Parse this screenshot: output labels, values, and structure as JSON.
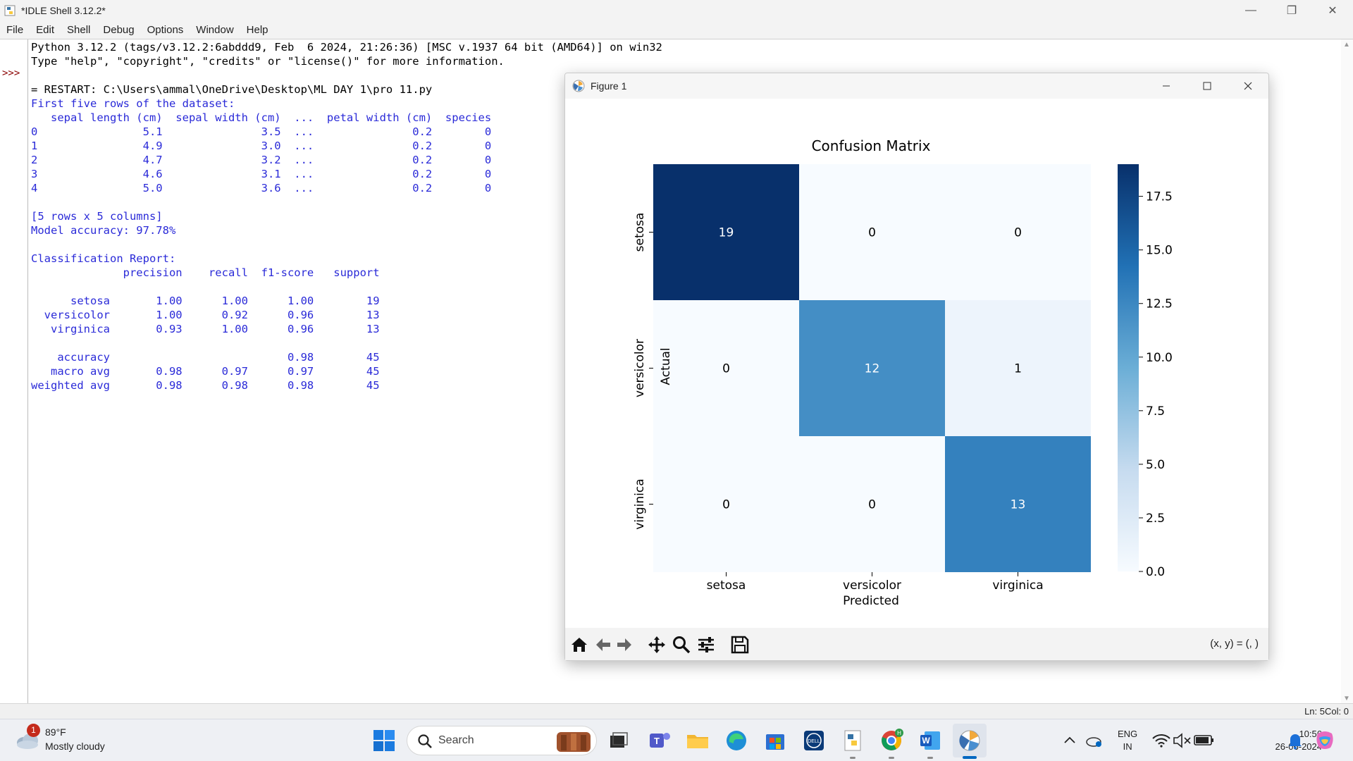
{
  "window": {
    "title": "*IDLE Shell 3.12.2*",
    "menu": [
      "File",
      "Edit",
      "Shell",
      "Debug",
      "Options",
      "Window",
      "Help"
    ]
  },
  "shell": {
    "prompt": ">>>",
    "lines": [
      {
        "text": "Python 3.12.2 (tags/v3.12.2:6abddd9, Feb  6 2024, 21:26:36) [MSC v.1937 64 bit (AMD64)] on win32",
        "color": "black"
      },
      {
        "text": "Type \"help\", \"copyright\", \"credits\" or \"license()\" for more information.",
        "color": "black"
      },
      {
        "text": "",
        "color": "black"
      },
      {
        "text": "= RESTART: C:\\Users\\ammal\\OneDrive\\Desktop\\ML DAY 1\\pro 11.py",
        "color": "black"
      },
      {
        "text": "First five rows of the dataset:",
        "color": "blue"
      },
      {
        "text": "   sepal length (cm)  sepal width (cm)  ...  petal width (cm)  species",
        "color": "blue"
      },
      {
        "text": "0                5.1               3.5  ...               0.2        0",
        "color": "blue"
      },
      {
        "text": "1                4.9               3.0  ...               0.2        0",
        "color": "blue"
      },
      {
        "text": "2                4.7               3.2  ...               0.2        0",
        "color": "blue"
      },
      {
        "text": "3                4.6               3.1  ...               0.2        0",
        "color": "blue"
      },
      {
        "text": "4                5.0               3.6  ...               0.2        0",
        "color": "blue"
      },
      {
        "text": "",
        "color": "blue"
      },
      {
        "text": "[5 rows x 5 columns]",
        "color": "blue"
      },
      {
        "text": "Model accuracy: 97.78%",
        "color": "blue"
      },
      {
        "text": "",
        "color": "blue"
      },
      {
        "text": "Classification Report:",
        "color": "blue"
      },
      {
        "text": "              precision    recall  f1-score   support",
        "color": "blue"
      },
      {
        "text": "",
        "color": "blue"
      },
      {
        "text": "      setosa       1.00      1.00      1.00        19",
        "color": "blue"
      },
      {
        "text": "  versicolor       1.00      0.92      0.96        13",
        "color": "blue"
      },
      {
        "text": "   virginica       0.93      1.00      0.96        13",
        "color": "blue"
      },
      {
        "text": "",
        "color": "blue"
      },
      {
        "text": "    accuracy                           0.98        45",
        "color": "blue"
      },
      {
        "text": "   macro avg       0.98      0.97      0.97        45",
        "color": "blue"
      },
      {
        "text": "weighted avg       0.98      0.98      0.98        45",
        "color": "blue"
      }
    ]
  },
  "statusbar": {
    "line": "Ln: 5",
    "col": "Col: 0"
  },
  "figure": {
    "title": "Figure 1",
    "coords": "(x, y) = (, )"
  },
  "chart_data": {
    "type": "heatmap",
    "title": "Confusion Matrix",
    "xlabel": "Predicted",
    "ylabel": "Actual",
    "x_categories": [
      "setosa",
      "versicolor",
      "virginica"
    ],
    "y_categories": [
      "setosa",
      "versicolor",
      "virginica"
    ],
    "matrix": [
      [
        19,
        0,
        0
      ],
      [
        0,
        12,
        1
      ],
      [
        0,
        0,
        13
      ]
    ],
    "colormap": "Blues",
    "colorbar_range": [
      0,
      19
    ],
    "colorbar_ticks": [
      0.0,
      2.5,
      5.0,
      7.5,
      10.0,
      12.5,
      15.0,
      17.5
    ],
    "colorbar_tick_labels": [
      "0.0",
      "2.5",
      "5.0",
      "7.5",
      "10.0",
      "12.5",
      "15.0",
      "17.5"
    ]
  },
  "taskbar": {
    "weather_temp": "89°F",
    "weather_cond": "Mostly cloudy",
    "weather_badge": "1",
    "search_placeholder": "Search",
    "lang_line1": "ENG",
    "lang_line2": "IN",
    "time": "10:56",
    "date": "26-06-2024"
  }
}
